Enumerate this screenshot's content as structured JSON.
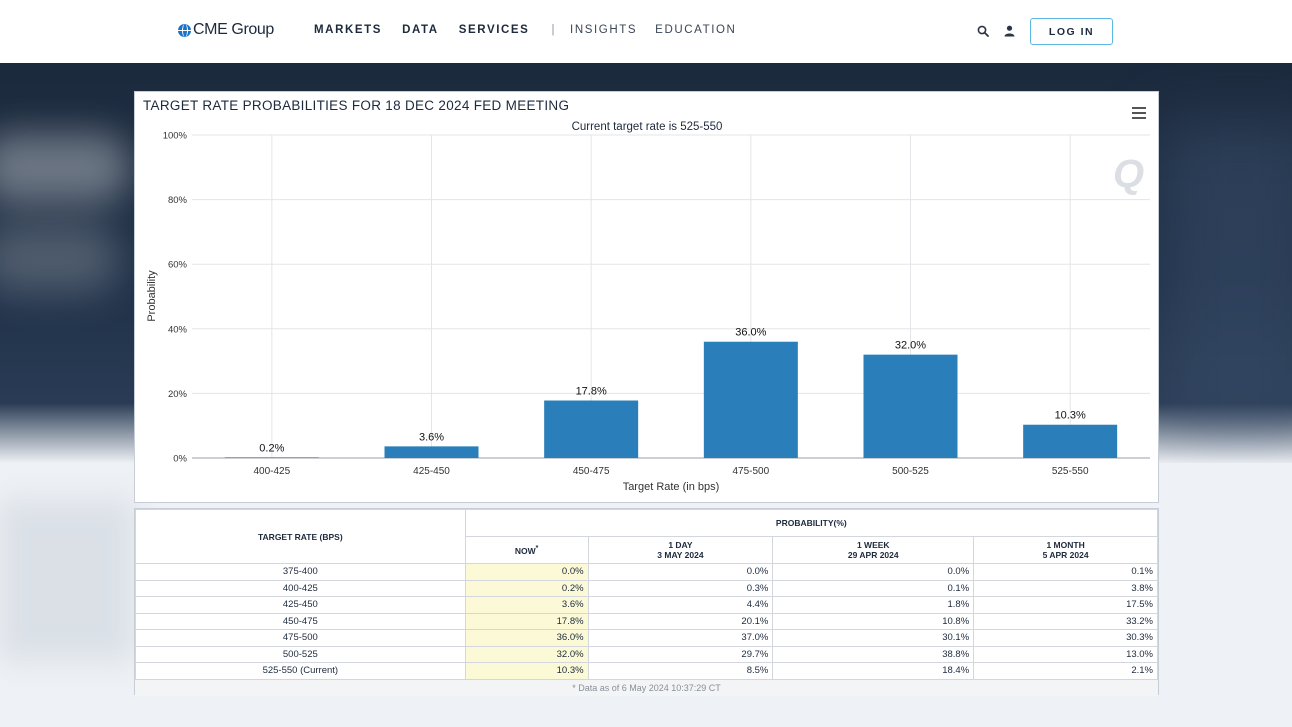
{
  "header": {
    "logo_text": "CME Group",
    "nav_primary": [
      "MARKETS",
      "DATA",
      "SERVICES"
    ],
    "separator": "|",
    "nav_secondary": [
      "INSIGHTS",
      "EDUCATION"
    ],
    "search_icon": "search-icon",
    "user_icon": "user-icon",
    "login_label": "LOG IN"
  },
  "chart_data": {
    "type": "bar",
    "title": "TARGET RATE PROBABILITIES FOR 18 DEC 2024 FED MEETING",
    "subtitle": "Current target rate is 525-550",
    "xlabel": "Target Rate (in bps)",
    "ylabel": "Probability",
    "categories": [
      "400-425",
      "425-450",
      "450-475",
      "475-500",
      "500-525",
      "525-550"
    ],
    "values": [
      0.2,
      3.6,
      17.8,
      36.0,
      32.0,
      10.3
    ],
    "data_labels": [
      "0.2%",
      "3.6%",
      "17.8%",
      "36.0%",
      "32.0%",
      "10.3%"
    ],
    "y_ticks": [
      "0%",
      "20%",
      "40%",
      "60%",
      "80%",
      "100%"
    ],
    "ylim": [
      0,
      100
    ],
    "grid": true,
    "bar_color": "#2a7fba"
  },
  "table": {
    "target_header": "TARGET RATE (BPS)",
    "prob_header": "PROBABILITY(%)",
    "columns": [
      {
        "line1": "NOW",
        "line2": ""
      },
      {
        "line1": "1 DAY",
        "line2": "3 MAY 2024"
      },
      {
        "line1": "1 WEEK",
        "line2": "29 APR 2024"
      },
      {
        "line1": "1 MONTH",
        "line2": "5 APR 2024"
      }
    ],
    "now_marker": "*",
    "rows": [
      {
        "rate": "375-400",
        "values": [
          "0.0%",
          "0.0%",
          "0.0%",
          "0.1%"
        ]
      },
      {
        "rate": "400-425",
        "values": [
          "0.2%",
          "0.3%",
          "0.1%",
          "3.8%"
        ]
      },
      {
        "rate": "425-450",
        "values": [
          "3.6%",
          "4.4%",
          "1.8%",
          "17.5%"
        ]
      },
      {
        "rate": "450-475",
        "values": [
          "17.8%",
          "20.1%",
          "10.8%",
          "33.2%"
        ]
      },
      {
        "rate": "475-500",
        "values": [
          "36.0%",
          "37.0%",
          "30.1%",
          "30.3%"
        ]
      },
      {
        "rate": "500-525",
        "values": [
          "32.0%",
          "29.7%",
          "38.8%",
          "13.0%"
        ]
      },
      {
        "rate": "525-550 (Current)",
        "values": [
          "10.3%",
          "8.5%",
          "18.4%",
          "2.1%"
        ]
      }
    ],
    "footnote": "* Data as of 6 May 2024 10:37:29 CT"
  }
}
